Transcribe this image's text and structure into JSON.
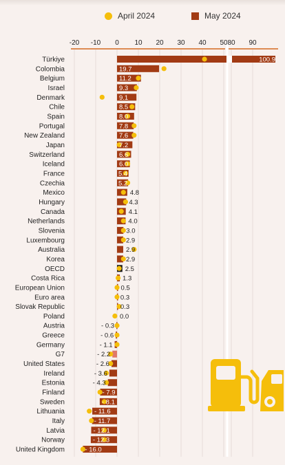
{
  "legend": {
    "april_label": "April 2024",
    "may_label": "May 2024"
  },
  "colors": {
    "april": "#f5be0b",
    "may": "#a23b14",
    "axis": "#d4691f",
    "background": "#f8f1ee",
    "icon": "#f5be0b"
  },
  "chart_data": {
    "type": "bar",
    "title": "",
    "xlabel": "",
    "ylabel": "",
    "orientation": "horizontal",
    "x_axis_break": [
      50,
      80
    ],
    "xlim": [
      -20,
      100
    ],
    "x_ticks": [
      -20,
      -10,
      0,
      10,
      20,
      30,
      40,
      50,
      80,
      90
    ],
    "x_tick_labels": [
      "-20",
      "-10",
      "0",
      "10",
      "20",
      "30",
      "40",
      "50",
      "80",
      "90"
    ],
    "categories": [
      "Türkiye",
      "Colombia",
      "Belgium",
      "Israel",
      "Denmark",
      "Chile",
      "Spain",
      "Portugal",
      "New Zealand",
      "Japan",
      "Switzerland",
      "Iceland",
      "France",
      "Czechia",
      "Mexico",
      "Hungary",
      "Canada",
      "Netherlands",
      "Slovenia",
      "Luxembourg",
      "Australia",
      "Korea",
      "OECD",
      "Costa Rica",
      "European Union",
      "Euro area",
      "Slovak Republic",
      "Poland",
      "Austria",
      "Greece",
      "Germany",
      "G7",
      "United States",
      "Ireland",
      "Estonia",
      "Finland",
      "Sweden",
      "Lithuania",
      "Italy",
      "Latvia",
      "Norway",
      "United Kingdom"
    ],
    "highlight_categories": [
      "OECD",
      "G7"
    ],
    "series": [
      {
        "name": "May 2024",
        "values": [
          100.9,
          19.7,
          11.2,
          9.3,
          9.1,
          8.5,
          8.0,
          7.8,
          7.6,
          7.2,
          6.6,
          6.0,
          5.4,
          5.2,
          4.8,
          4.3,
          4.1,
          4.0,
          3.0,
          2.9,
          2.9,
          2.9,
          2.5,
          1.3,
          0.5,
          0.3,
          0.3,
          0.0,
          -0.3,
          -0.6,
          -1.1,
          -2.2,
          -2.6,
          -3.6,
          -4.3,
          -7.9,
          -8.1,
          -11.6,
          -11.7,
          -12.1,
          -12.3,
          -16.0
        ],
        "labels": [
          "100.9",
          "19.7",
          "11.2",
          "9.3",
          "9.1",
          "8.5",
          "8.0",
          "7.8",
          "7.6",
          "7.2",
          "6.6",
          "6.0",
          "5.4",
          "5.2",
          "4.8",
          "4.3",
          "4.1",
          "4.0",
          "3.0",
          "2.9",
          "2.9",
          "2.9",
          "2.5",
          "1.3",
          "0.5",
          "0.3",
          "0.3",
          "0.0",
          "- 0.3",
          "- 0.6",
          "- 1.1",
          "- 2.2",
          "- 2.6",
          "- 3.6",
          "- 4.3",
          "- 7.9",
          "- 8.1",
          "- 11.6",
          "- 11.7",
          "- 12.1",
          "- 12.3",
          "- 16.0"
        ]
      },
      {
        "name": "April 2024",
        "values": [
          41,
          22,
          10,
          9,
          -7,
          7,
          5,
          8,
          8,
          1,
          5,
          5,
          4,
          5,
          3,
          4,
          2,
          3,
          3,
          3,
          8,
          3,
          1,
          0.5,
          0,
          0,
          1,
          -1,
          0,
          0,
          0,
          -3,
          -3,
          -5,
          -5,
          -8,
          -6,
          -13,
          -12,
          -6,
          -6,
          -16
        ]
      }
    ]
  }
}
